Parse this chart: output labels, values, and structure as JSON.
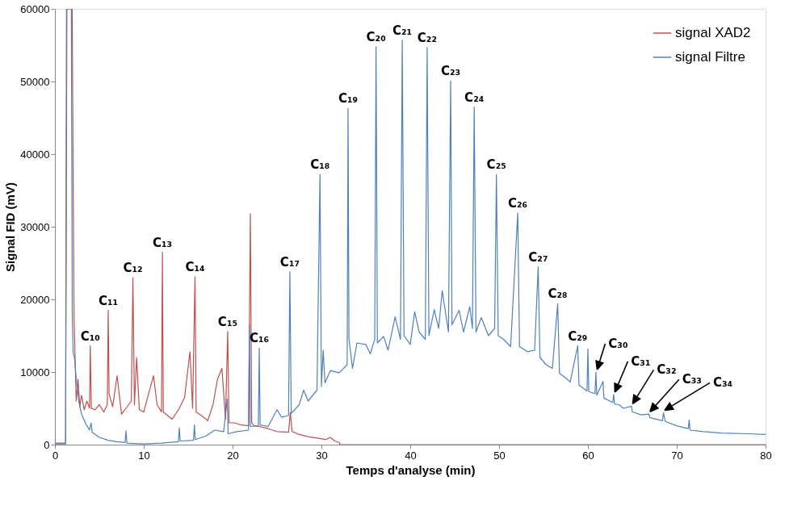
{
  "chart_data": {
    "type": "line",
    "xlabel": "Temps d'analyse (min)",
    "ylabel": "Signal FID (mV)",
    "xlim": [
      0,
      80
    ],
    "xticks": [
      0,
      10,
      20,
      30,
      40,
      50,
      60,
      70,
      80
    ],
    "ylim": [
      0,
      60000
    ],
    "yticks": [
      0,
      10000,
      20000,
      30000,
      40000,
      50000,
      60000
    ],
    "grid": false,
    "legend": "top right",
    "marker": "none",
    "line_style": "solid",
    "series": [
      {
        "name": "signal XAD2",
        "color": "#c0504d",
        "x": [
          0,
          1.2,
          1.35,
          1.95,
          2.05,
          2.15,
          2.25,
          2.4,
          2.6,
          2.8,
          3.0,
          3.3,
          3.6,
          3.9,
          3.98,
          4.1,
          4.5,
          5.0,
          5.5,
          5.9,
          6.0,
          6.1,
          6.5,
          7.0,
          7.5,
          8.0,
          8.6,
          8.78,
          8.95,
          9.2,
          9.5,
          10.0,
          10.5,
          11.1,
          11.5,
          12.0,
          12.1,
          12.2,
          12.7,
          13.2,
          14.0,
          14.6,
          15.2,
          15.5,
          15.77,
          15.9,
          16.5,
          17.2,
          17.8,
          18.3,
          18.8,
          19.2,
          19.45,
          19.6,
          20.2,
          21.0,
          21.8,
          22.0,
          22.15,
          22.4,
          23.0,
          24.0,
          25.0,
          26.3,
          26.5,
          26.7,
          27.5,
          28.5,
          29.5,
          30.5,
          31.0,
          31.5,
          32.0,
          32.1,
          80
        ],
        "values": [
          200,
          200,
          60000,
          60000,
          37000,
          18000,
          12900,
          6000,
          9000,
          5200,
          6800,
          4800,
          6000,
          5000,
          13600,
          5000,
          4800,
          5500,
          4500,
          5500,
          18500,
          7000,
          5200,
          9500,
          4200,
          5000,
          6000,
          23000,
          5500,
          12000,
          4800,
          4500,
          6800,
          9500,
          5500,
          4500,
          26500,
          4500,
          4000,
          3500,
          5000,
          6500,
          12800,
          5000,
          23100,
          4500,
          4000,
          3300,
          5500,
          9000,
          10500,
          3500,
          15600,
          3000,
          3000,
          2700,
          2600,
          31800,
          3000,
          2600,
          2500,
          2200,
          1800,
          1700,
          4400,
          1800,
          1400,
          1100,
          900,
          700,
          1000,
          500,
          300,
          0,
          0
        ]
      },
      {
        "name": "signal Filtre",
        "color": "#4f81bd",
        "x": [
          0,
          1.2,
          1.3,
          1.85,
          1.95,
          2.05,
          2.2,
          2.4,
          2.7,
          3.0,
          3.5,
          3.9,
          4.07,
          4.2,
          5.0,
          6.0,
          7.0,
          7.9,
          8.0,
          8.1,
          10.0,
          12.0,
          13.9,
          14.0,
          14.1,
          15.6,
          15.7,
          15.8,
          17.0,
          18.0,
          19.0,
          19.4,
          19.5,
          20.5,
          21.8,
          21.9,
          22.0,
          22.9,
          23.0,
          23.1,
          24.0,
          25.0,
          25.5,
          26.3,
          26.45,
          26.6,
          27.5,
          28.0,
          28.5,
          29.5,
          29.84,
          30.0,
          30.2,
          30.4,
          31.0,
          32.0,
          32.9,
          33.0,
          33.1,
          33.5,
          34.0,
          35.0,
          35.5,
          36.0,
          36.15,
          36.3,
          37.0,
          37.5,
          38.3,
          38.9,
          39.1,
          39.3,
          40.0,
          40.5,
          41.0,
          41.7,
          41.9,
          42.1,
          42.7,
          43.2,
          43.6,
          44.3,
          44.55,
          44.7,
          45.5,
          46.0,
          46.7,
          47.0,
          47.2,
          47.4,
          48.0,
          48.8,
          49.5,
          49.7,
          49.9,
          50.5,
          51.3,
          52.1,
          52.3,
          53.2,
          54.0,
          54.4,
          54.6,
          55.3,
          56.0,
          56.6,
          56.8,
          57.5,
          58.0,
          58.85,
          59.0,
          59.9,
          60.0,
          60.1,
          60.8,
          60.9,
          61.0,
          61.7,
          61.8,
          62.8,
          62.9,
          63.0,
          63.5,
          64.0,
          64.9,
          65.0,
          66.0,
          66.85,
          67.0,
          68.4,
          68.5,
          68.7,
          70.0,
          71.3,
          71.4,
          71.5,
          73.0,
          75.0,
          78.0,
          80.0
        ],
        "values": [
          100,
          100,
          60000,
          60000,
          18500,
          12600,
          12000,
          9000,
          5900,
          4200,
          2800,
          2000,
          3000,
          1700,
          1000,
          600,
          400,
          300,
          1900,
          200,
          100,
          200,
          400,
          2300,
          500,
          600,
          2700,
          700,
          1200,
          2000,
          1800,
          6300,
          1500,
          1800,
          2000,
          16500,
          2500,
          2600,
          13300,
          2700,
          2500,
          4800,
          3800,
          4000,
          23800,
          4300,
          5500,
          7500,
          6000,
          7500,
          37200,
          8000,
          13000,
          8500,
          10200,
          9900,
          11000,
          46300,
          14600,
          10500,
          14000,
          13800,
          12500,
          14500,
          54800,
          14000,
          14900,
          13000,
          17600,
          14500,
          55700,
          15000,
          13800,
          18300,
          15500,
          14500,
          54700,
          15000,
          18600,
          16000,
          21200,
          15500,
          50100,
          16500,
          18500,
          15500,
          19000,
          16000,
          46500,
          15500,
          17500,
          15000,
          16000,
          37200,
          15000,
          14500,
          13500,
          31900,
          13500,
          12800,
          13000,
          24500,
          12000,
          11000,
          10500,
          19400,
          9800,
          9200,
          8600,
          13600,
          8200,
          7400,
          13200,
          7300,
          7000,
          10000,
          6800,
          8700,
          6400,
          5800,
          6900,
          5600,
          5500,
          5000,
          5300,
          4500,
          4100,
          4200,
          3700,
          3300,
          4400,
          3200,
          2600,
          2200,
          3400,
          2000,
          1800,
          1600,
          1500,
          1400
        ]
      }
    ],
    "annotations": [
      {
        "text": "C₁₀",
        "x": 3.98,
        "y": 13600
      },
      {
        "text": "C₁₁",
        "x": 6.0,
        "y": 18500
      },
      {
        "text": "C₁₂",
        "x": 8.78,
        "y": 23000
      },
      {
        "text": "C₁₃",
        "x": 12.1,
        "y": 26500
      },
      {
        "text": "C₁₄",
        "x": 15.77,
        "y": 23100
      },
      {
        "text": "C₁₅",
        "x": 19.45,
        "y": 15600
      },
      {
        "text": "C₁₆",
        "x": 23.0,
        "y": 13300
      },
      {
        "text": "C₁₇",
        "x": 26.45,
        "y": 23800
      },
      {
        "text": "C₁₈",
        "x": 29.84,
        "y": 37200
      },
      {
        "text": "C₁₉",
        "x": 33.0,
        "y": 46300
      },
      {
        "text": "C₂₀",
        "x": 36.15,
        "y": 54800
      },
      {
        "text": "C₂₁",
        "x": 39.1,
        "y": 55700
      },
      {
        "text": "C₂₂",
        "x": 41.9,
        "y": 54700
      },
      {
        "text": "C₂₃",
        "x": 44.55,
        "y": 50100
      },
      {
        "text": "C₂₄",
        "x": 47.2,
        "y": 46500
      },
      {
        "text": "C₂₅",
        "x": 49.7,
        "y": 37200
      },
      {
        "text": "C₂₆",
        "x": 52.1,
        "y": 31900
      },
      {
        "text": "C₂₇",
        "x": 54.4,
        "y": 24500
      },
      {
        "text": "C₂₈",
        "x": 56.6,
        "y": 19400
      },
      {
        "text": "C₂₉",
        "x": 58.85,
        "y": 13600
      },
      {
        "text": "C₃₀",
        "x": 60.9,
        "y": 10000
      },
      {
        "text": "C₃₁",
        "x": 62.9,
        "y": 6900
      },
      {
        "text": "C₃₂",
        "x": 64.9,
        "y": 5300
      },
      {
        "text": "C₃₃",
        "x": 66.85,
        "y": 4200
      },
      {
        "text": "C₃₄",
        "x": 68.5,
        "y": 4400
      }
    ]
  }
}
